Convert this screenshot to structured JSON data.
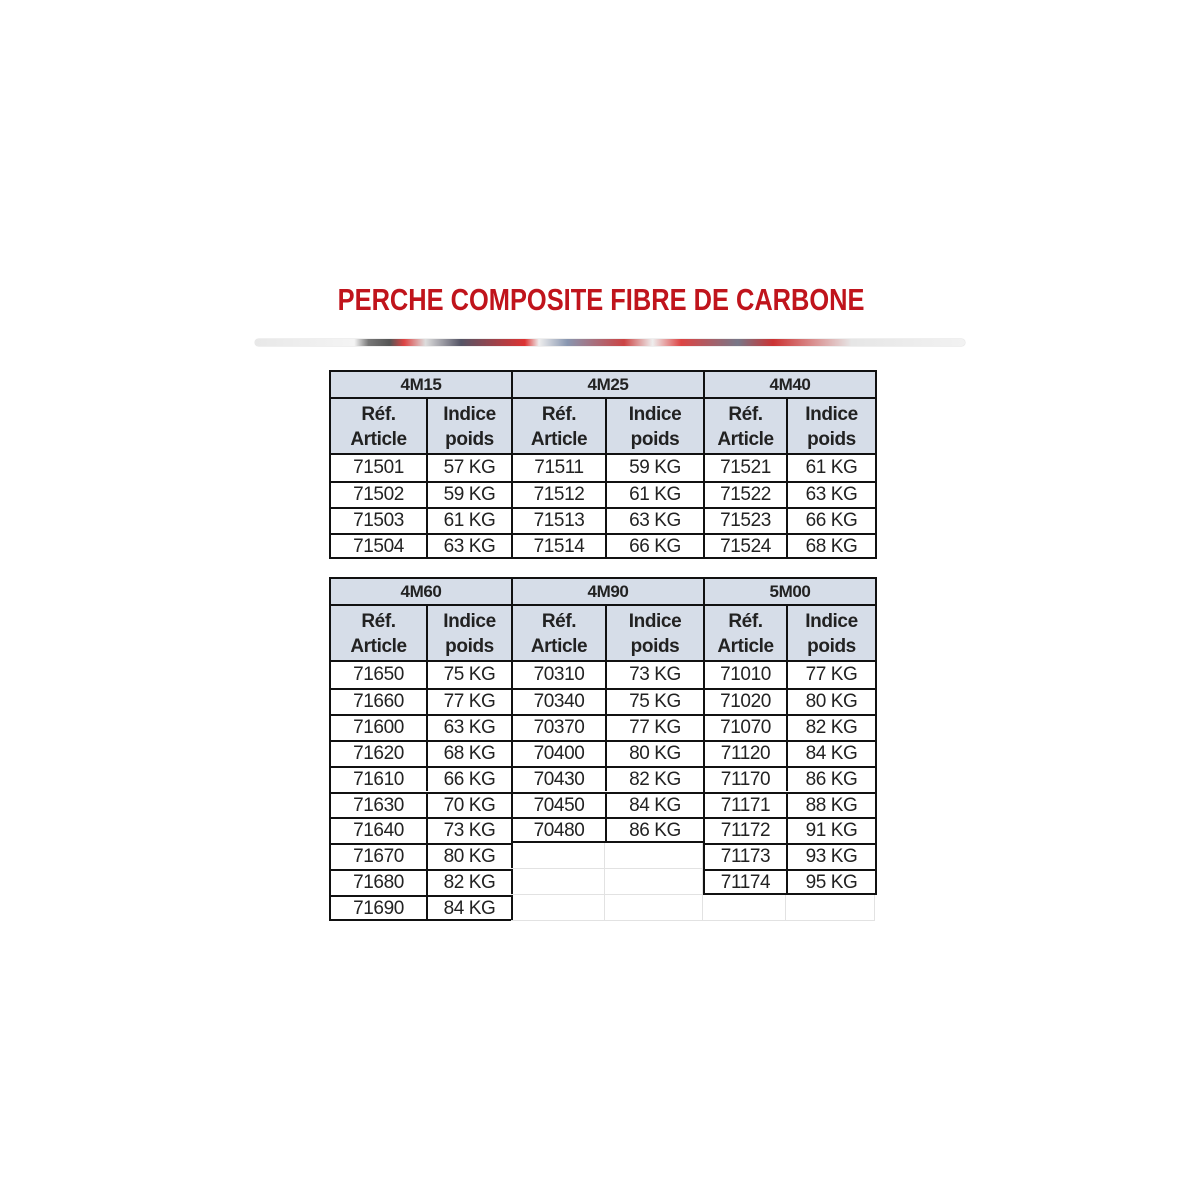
{
  "title": "PERCHE COMPOSITE FIBRE DE CARBONE",
  "title_color": "#c0141c",
  "header_bg": "#d6dde8",
  "column_labels": {
    "ref_line1": "Réf.",
    "ref_line2": "Article",
    "poids_line1": "Indice",
    "poids_line2": "poids"
  },
  "tables": [
    {
      "groups": [
        {
          "length": "4M15",
          "rows": [
            [
              "71501",
              "57 KG"
            ],
            [
              "71502",
              "59 KG"
            ],
            [
              "71503",
              "61 KG"
            ],
            [
              "71504",
              "63 KG"
            ]
          ]
        },
        {
          "length": "4M25",
          "rows": [
            [
              "71511",
              "59 KG"
            ],
            [
              "71512",
              "61 KG"
            ],
            [
              "71513",
              "63 KG"
            ],
            [
              "71514",
              "66 KG"
            ]
          ]
        },
        {
          "length": "4M40",
          "rows": [
            [
              "71521",
              "61 KG"
            ],
            [
              "71522",
              "63 KG"
            ],
            [
              "71523",
              "66 KG"
            ],
            [
              "71524",
              "68 KG"
            ]
          ]
        }
      ]
    },
    {
      "groups": [
        {
          "length": "4M60",
          "rows": [
            [
              "71650",
              "75 KG"
            ],
            [
              "71660",
              "77 KG"
            ],
            [
              "71600",
              "63 KG"
            ],
            [
              "71620",
              "68 KG"
            ],
            [
              "71610",
              "66 KG"
            ],
            [
              "71630",
              "70 KG"
            ],
            [
              "71640",
              "73 KG"
            ],
            [
              "71670",
              "80 KG"
            ],
            [
              "71680",
              "82 KG"
            ],
            [
              "71690",
              "84 KG"
            ]
          ]
        },
        {
          "length": "4M90",
          "rows": [
            [
              "70310",
              "73 KG"
            ],
            [
              "70340",
              "75 KG"
            ],
            [
              "70370",
              "77 KG"
            ],
            [
              "70400",
              "80 KG"
            ],
            [
              "70430",
              "82 KG"
            ],
            [
              "70450",
              "84 KG"
            ],
            [
              "70480",
              "86 KG"
            ]
          ]
        },
        {
          "length": "5M00",
          "rows": [
            [
              "71010",
              "77 KG"
            ],
            [
              "71020",
              "80 KG"
            ],
            [
              "71070",
              "82 KG"
            ],
            [
              "71120",
              "84 KG"
            ],
            [
              "71170",
              "86 KG"
            ],
            [
              "71171",
              "88 KG"
            ],
            [
              "71172",
              "91 KG"
            ],
            [
              "71173",
              "93 KG"
            ],
            [
              "71174",
              "95 KG"
            ]
          ]
        }
      ]
    }
  ]
}
